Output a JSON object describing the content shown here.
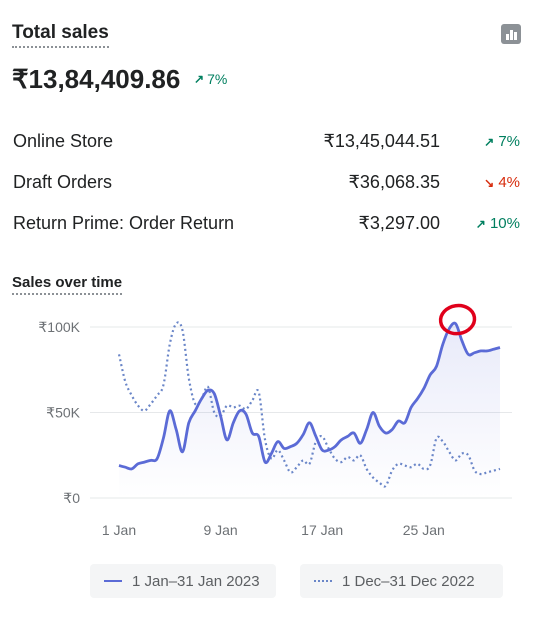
{
  "card": {
    "title": "Total sales",
    "total": "₹13,84,409.86",
    "total_change": "7%",
    "total_change_arrow": "↗"
  },
  "breakdown": [
    {
      "label": "Online Store",
      "value": "₹13,45,044.51",
      "change": "7%",
      "arrow": "↗",
      "direction": "up"
    },
    {
      "label": "Draft Orders",
      "value": "₹36,068.35",
      "change": "4%",
      "arrow": "↘",
      "direction": "down"
    },
    {
      "label": "Return Prime: Order Return",
      "value": "₹3,297.00",
      "change": "10%",
      "arrow": "↗",
      "direction": "up"
    }
  ],
  "chart_title": "Sales over time",
  "colors": {
    "current": "#5b6bd6",
    "previous": "#6a86c8",
    "up": "#007f5f",
    "down": "#d72c0d",
    "annotation": "#e0001b"
  },
  "chart_data": {
    "type": "line",
    "y_ticks": [
      "₹100K",
      "₹50K",
      "₹0"
    ],
    "x_ticks": [
      "1 Jan",
      "9 Jan",
      "17 Jan",
      "25 Jan"
    ],
    "ylim": [
      0,
      100000
    ],
    "series": [
      {
        "name": "1 Jan–31 Jan 2023",
        "style": "solid",
        "x": [
          1,
          1.5,
          2,
          2.5,
          3,
          3.5,
          4,
          4.5,
          5,
          5.5,
          6,
          6.5,
          7,
          7.5,
          8,
          8.5,
          9,
          9.5,
          10,
          10.5,
          11,
          11.5,
          12,
          12.5,
          13,
          13.5,
          14,
          14.5,
          15,
          15.5,
          16,
          16.5,
          17,
          17.5,
          18,
          18.5,
          19,
          19.5,
          20,
          20.5,
          21,
          21.5,
          22,
          22.5,
          23,
          23.5,
          24,
          24.5,
          25,
          25.5,
          26,
          26.5,
          27,
          27.5,
          28,
          28.5,
          29,
          29.5,
          30,
          30.5,
          31
        ],
        "values": [
          19000,
          18000,
          17000,
          20000,
          21000,
          22000,
          23000,
          35000,
          51000,
          40000,
          27000,
          44000,
          51000,
          58000,
          63000,
          61000,
          48000,
          34000,
          44000,
          51000,
          49000,
          38000,
          36000,
          21000,
          26000,
          33000,
          29000,
          30000,
          32000,
          37000,
          44000,
          36000,
          28000,
          28000,
          30000,
          34000,
          36000,
          38000,
          32000,
          40000,
          50000,
          42000,
          38000,
          40000,
          45000,
          44000,
          53000,
          58000,
          64000,
          72000,
          77000,
          90000,
          99000,
          102000,
          92000,
          84000,
          85000,
          86000,
          86000,
          87000,
          88000
        ]
      },
      {
        "name": "1 Dec–31 Dec 2022",
        "style": "dotted",
        "x": [
          1,
          1.5,
          2,
          2.5,
          3,
          3.5,
          4,
          4.5,
          5,
          5.5,
          6,
          6.5,
          7,
          7.5,
          8,
          8.5,
          9,
          9.5,
          10,
          10.5,
          11,
          11.5,
          12,
          12.5,
          13,
          13.5,
          14,
          14.5,
          15,
          15.5,
          16,
          16.5,
          17,
          17.5,
          18,
          18.5,
          19,
          19.5,
          20,
          20.5,
          21,
          21.5,
          22,
          22.5,
          23,
          23.5,
          24,
          24.5,
          25,
          25.5,
          26,
          26.5,
          27,
          27.5,
          28,
          28.5,
          29,
          29.5,
          30,
          30.5,
          31
        ],
        "values": [
          84000,
          68000,
          60000,
          54000,
          51000,
          55000,
          60000,
          66000,
          90000,
          102000,
          98000,
          70000,
          55000,
          58000,
          65000,
          50000,
          48000,
          54000,
          53000,
          54000,
          52000,
          57000,
          62000,
          34000,
          23000,
          28000,
          22000,
          15000,
          18000,
          22000,
          20000,
          33000,
          36000,
          29000,
          23000,
          21000,
          24000,
          22000,
          25000,
          17000,
          12000,
          9000,
          7000,
          16000,
          20000,
          19000,
          18000,
          20000,
          17000,
          19000,
          35000,
          33000,
          27000,
          22000,
          26000,
          25000,
          16000,
          14000,
          15000,
          16000,
          17000
        ]
      }
    ],
    "annotation": {
      "type": "hand-drawn-circle",
      "around": "peak of 1 Jan–31 Jan 2023 series"
    }
  },
  "legend": [
    {
      "label": "1 Jan–31 Jan 2023"
    },
    {
      "label": "1 Dec–31 Dec 2022"
    }
  ]
}
